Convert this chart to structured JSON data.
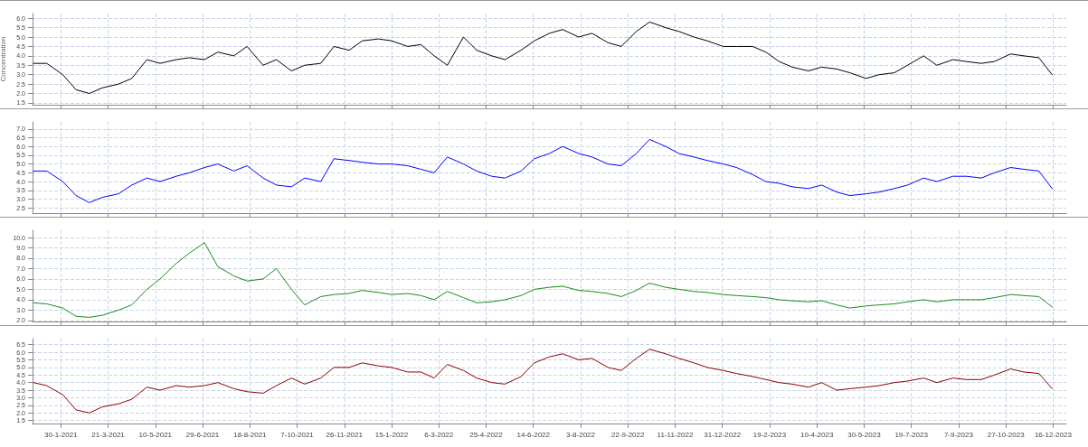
{
  "chart_data": [
    {
      "type": "line",
      "ylabel": "Concentration",
      "x": [
        "2021-01-01",
        "2021-01-15",
        "2021-02-01",
        "2021-02-15",
        "2021-03-01",
        "2021-03-15",
        "2021-04-01",
        "2021-04-15",
        "2021-05-01",
        "2021-05-15",
        "2021-06-01",
        "2021-06-15",
        "2021-07-01",
        "2021-07-15",
        "2021-08-01",
        "2021-08-15",
        "2021-09-01",
        "2021-09-15",
        "2021-10-01",
        "2021-10-15",
        "2021-11-01",
        "2021-11-15",
        "2021-12-01",
        "2021-12-15",
        "2022-01-01",
        "2022-01-15",
        "2022-02-01",
        "2022-02-15",
        "2022-03-01",
        "2022-03-15",
        "2022-04-01",
        "2022-04-15",
        "2022-05-01",
        "2022-05-15",
        "2022-06-01",
        "2022-06-15",
        "2022-07-01",
        "2022-07-15",
        "2022-08-01",
        "2022-08-15",
        "2022-09-01",
        "2022-09-15",
        "2022-10-01",
        "2022-10-15",
        "2022-11-01",
        "2022-11-15",
        "2022-12-01",
        "2022-12-15",
        "2023-01-01",
        "2023-01-15",
        "2023-02-01",
        "2023-02-15",
        "2023-03-01",
        "2023-03-15",
        "2023-04-01",
        "2023-04-15",
        "2023-05-01",
        "2023-05-15",
        "2023-06-01",
        "2023-06-15",
        "2023-07-01",
        "2023-07-15",
        "2023-08-01",
        "2023-08-15",
        "2023-09-01",
        "2023-09-15",
        "2023-10-01",
        "2023-10-15",
        "2023-11-01",
        "2023-11-15",
        "2023-12-01",
        "2023-12-15"
      ],
      "series": [
        {
          "color": "#000000",
          "values": [
            3.6,
            3.6,
            3.0,
            2.2,
            2.0,
            2.3,
            2.5,
            2.8,
            3.8,
            3.6,
            3.8,
            3.9,
            3.8,
            4.2,
            4.0,
            4.5,
            3.5,
            3.8,
            3.2,
            3.5,
            3.6,
            4.5,
            4.3,
            4.8,
            4.9,
            4.8,
            4.5,
            4.6,
            4.0,
            3.5,
            5.0,
            4.3,
            4.0,
            3.8,
            4.3,
            4.8,
            5.2,
            5.4,
            5.0,
            5.2,
            4.7,
            4.5,
            5.3,
            5.8,
            5.5,
            5.3,
            5.0,
            4.8,
            4.5,
            4.5,
            4.5,
            4.2,
            3.7,
            3.4,
            3.2,
            3.4,
            3.3,
            3.1,
            2.8,
            3.0,
            3.1,
            3.5,
            4.0,
            3.5,
            3.8,
            3.7,
            3.6,
            3.7,
            4.1,
            4.0,
            3.9,
            3.0
          ]
        }
      ],
      "xlim": [
        "2020-12-31",
        "2023-12-30"
      ],
      "xticks": [
        {
          "value": "2021-01-30",
          "label": null
        },
        {
          "value": "2021-03-21",
          "label": null
        },
        {
          "value": "2021-05-10",
          "label": null
        },
        {
          "value": "2021-06-29",
          "label": null
        },
        {
          "value": "2021-08-18",
          "label": null
        },
        {
          "value": "2021-10-07",
          "label": null
        },
        {
          "value": "2021-11-26",
          "label": null
        },
        {
          "value": "2022-01-15",
          "label": null
        },
        {
          "value": "2022-03-06",
          "label": null
        },
        {
          "value": "2022-04-25",
          "label": null
        },
        {
          "value": "2022-06-14",
          "label": null
        },
        {
          "value": "2022-08-03",
          "label": null
        },
        {
          "value": "2022-09-22",
          "label": null
        },
        {
          "value": "2022-11-11",
          "label": null
        },
        {
          "value": "2022-12-31",
          "label": null
        },
        {
          "value": "2023-02-19",
          "label": null
        },
        {
          "value": "2023-04-10",
          "label": null
        },
        {
          "value": "2023-05-30",
          "label": null
        },
        {
          "value": "2023-07-19",
          "label": null
        },
        {
          "value": "2023-09-07",
          "label": null
        },
        {
          "value": "2023-10-27",
          "label": null
        },
        {
          "value": "2023-12-16",
          "label": null
        }
      ],
      "ylim": [
        1.4,
        6.25
      ],
      "yticks": [
        {
          "value": 1.5,
          "label": "1.5"
        },
        {
          "value": 2,
          "label": "2.0"
        },
        {
          "value": 2.5,
          "label": "2.5"
        },
        {
          "value": 3,
          "label": "3.0"
        },
        {
          "value": 3.5,
          "label": "3.5"
        },
        {
          "value": 4,
          "label": "4.0"
        },
        {
          "value": 4.5,
          "label": "4.5"
        },
        {
          "value": 5,
          "label": "5.0"
        },
        {
          "value": 5.5,
          "label": "5.5"
        },
        {
          "value": 6,
          "label": "6.0"
        }
      ],
      "grid": true,
      "marker": "none",
      "line_style": "solid",
      "tick_labels": "y"
    },
    {
      "type": "line",
      "x": [
        "2021-01-01",
        "2021-01-15",
        "2021-02-01",
        "2021-02-15",
        "2021-03-01",
        "2021-03-15",
        "2021-04-01",
        "2021-04-15",
        "2021-05-01",
        "2021-05-15",
        "2021-06-01",
        "2021-06-15",
        "2021-07-01",
        "2021-07-15",
        "2021-08-01",
        "2021-08-15",
        "2021-09-01",
        "2021-09-15",
        "2021-10-01",
        "2021-10-15",
        "2021-11-01",
        "2021-11-15",
        "2021-12-01",
        "2021-12-15",
        "2022-01-01",
        "2022-01-15",
        "2022-02-01",
        "2022-02-15",
        "2022-03-01",
        "2022-03-15",
        "2022-04-01",
        "2022-04-15",
        "2022-05-01",
        "2022-05-15",
        "2022-06-01",
        "2022-06-15",
        "2022-07-01",
        "2022-07-15",
        "2022-08-01",
        "2022-08-15",
        "2022-09-01",
        "2022-09-15",
        "2022-10-01",
        "2022-10-15",
        "2022-11-01",
        "2022-11-15",
        "2022-12-01",
        "2022-12-15",
        "2023-01-01",
        "2023-01-15",
        "2023-02-01",
        "2023-02-15",
        "2023-03-01",
        "2023-03-15",
        "2023-04-01",
        "2023-04-15",
        "2023-05-01",
        "2023-05-15",
        "2023-06-01",
        "2023-06-15",
        "2023-07-01",
        "2023-07-15",
        "2023-08-01",
        "2023-08-15",
        "2023-09-01",
        "2023-09-15",
        "2023-10-01",
        "2023-10-15",
        "2023-11-01",
        "2023-11-15",
        "2023-12-01",
        "2023-12-15"
      ],
      "series": [
        {
          "color": "#0000ff",
          "values": [
            4.6,
            4.6,
            4.0,
            3.2,
            2.8,
            3.1,
            3.3,
            3.8,
            4.2,
            4.0,
            4.3,
            4.5,
            4.8,
            5.0,
            4.6,
            4.9,
            4.2,
            3.8,
            3.7,
            4.2,
            4.0,
            5.3,
            5.2,
            5.1,
            5.0,
            5.0,
            4.9,
            4.7,
            4.5,
            5.4,
            5.0,
            4.6,
            4.3,
            4.2,
            4.6,
            5.3,
            5.6,
            6.0,
            5.6,
            5.4,
            5.0,
            4.9,
            5.6,
            6.4,
            6.0,
            5.6,
            5.4,
            5.2,
            5.0,
            4.8,
            4.4,
            4.0,
            3.9,
            3.7,
            3.6,
            3.8,
            3.4,
            3.2,
            3.3,
            3.4,
            3.6,
            3.8,
            4.2,
            4.0,
            4.3,
            4.3,
            4.2,
            4.5,
            4.8,
            4.7,
            4.6,
            3.6
          ]
        }
      ],
      "xlim": [
        "2020-12-31",
        "2023-12-30"
      ],
      "xticks": [
        {
          "value": "2021-01-30",
          "label": null
        },
        {
          "value": "2021-03-21",
          "label": null
        },
        {
          "value": "2021-05-10",
          "label": null
        },
        {
          "value": "2021-06-29",
          "label": null
        },
        {
          "value": "2021-08-18",
          "label": null
        },
        {
          "value": "2021-10-07",
          "label": null
        },
        {
          "value": "2021-11-26",
          "label": null
        },
        {
          "value": "2022-01-15",
          "label": null
        },
        {
          "value": "2022-03-06",
          "label": null
        },
        {
          "value": "2022-04-25",
          "label": null
        },
        {
          "value": "2022-06-14",
          "label": null
        },
        {
          "value": "2022-08-03",
          "label": null
        },
        {
          "value": "2022-09-22",
          "label": null
        },
        {
          "value": "2022-11-11",
          "label": null
        },
        {
          "value": "2022-12-31",
          "label": null
        },
        {
          "value": "2023-02-19",
          "label": null
        },
        {
          "value": "2023-04-10",
          "label": null
        },
        {
          "value": "2023-05-30",
          "label": null
        },
        {
          "value": "2023-07-19",
          "label": null
        },
        {
          "value": "2023-09-07",
          "label": null
        },
        {
          "value": "2023-10-27",
          "label": null
        },
        {
          "value": "2023-12-16",
          "label": null
        }
      ],
      "ylim": [
        2.2,
        7.4
      ],
      "yticks": [
        {
          "value": 2.5,
          "label": "2.5"
        },
        {
          "value": 3,
          "label": "3.0"
        },
        {
          "value": 3.5,
          "label": "3.5"
        },
        {
          "value": 4,
          "label": "4.0"
        },
        {
          "value": 4.5,
          "label": "4.5"
        },
        {
          "value": 5,
          "label": "5.0"
        },
        {
          "value": 5.5,
          "label": "5.5"
        },
        {
          "value": 6,
          "label": "6.0"
        },
        {
          "value": 6.5,
          "label": "6.5"
        },
        {
          "value": 7,
          "label": "7.0"
        }
      ],
      "grid": true,
      "marker": "none",
      "line_style": "solid",
      "tick_labels": "y"
    },
    {
      "type": "line",
      "x": [
        "2021-01-01",
        "2021-01-15",
        "2021-02-01",
        "2021-02-15",
        "2021-03-01",
        "2021-03-15",
        "2021-04-01",
        "2021-04-15",
        "2021-05-01",
        "2021-05-15",
        "2021-06-01",
        "2021-06-15",
        "2021-07-01",
        "2021-07-15",
        "2021-08-01",
        "2021-08-15",
        "2021-09-01",
        "2021-09-15",
        "2021-10-01",
        "2021-10-15",
        "2021-11-01",
        "2021-11-15",
        "2021-12-01",
        "2021-12-15",
        "2022-01-01",
        "2022-01-15",
        "2022-02-01",
        "2022-02-15",
        "2022-03-01",
        "2022-03-15",
        "2022-04-01",
        "2022-04-15",
        "2022-05-01",
        "2022-05-15",
        "2022-06-01",
        "2022-06-15",
        "2022-07-01",
        "2022-07-15",
        "2022-08-01",
        "2022-08-15",
        "2022-09-01",
        "2022-09-15",
        "2022-10-01",
        "2022-10-15",
        "2022-11-01",
        "2022-11-15",
        "2022-12-01",
        "2022-12-15",
        "2023-01-01",
        "2023-01-15",
        "2023-02-01",
        "2023-02-15",
        "2023-03-01",
        "2023-03-15",
        "2023-04-01",
        "2023-04-15",
        "2023-05-01",
        "2023-05-15",
        "2023-06-01",
        "2023-06-15",
        "2023-07-01",
        "2023-07-15",
        "2023-08-01",
        "2023-08-15",
        "2023-09-01",
        "2023-09-15",
        "2023-10-01",
        "2023-10-15",
        "2023-11-01",
        "2023-11-15",
        "2023-12-01",
        "2023-12-15"
      ],
      "series": [
        {
          "color": "#1a8a1a",
          "values": [
            3.7,
            3.6,
            3.2,
            2.4,
            2.3,
            2.5,
            3.0,
            3.5,
            5.0,
            6.0,
            7.5,
            8.5,
            9.5,
            7.2,
            6.3,
            5.8,
            6.0,
            7.0,
            5.0,
            3.5,
            4.3,
            4.5,
            4.6,
            4.9,
            4.7,
            4.5,
            4.6,
            4.4,
            4.0,
            4.8,
            4.2,
            3.7,
            3.8,
            4.0,
            4.4,
            5.0,
            5.2,
            5.3,
            4.9,
            4.8,
            4.6,
            4.3,
            4.9,
            5.6,
            5.2,
            5.0,
            4.8,
            4.7,
            4.5,
            4.4,
            4.3,
            4.2,
            4.0,
            3.9,
            3.8,
            3.9,
            3.5,
            3.2,
            3.4,
            3.5,
            3.6,
            3.8,
            4.0,
            3.8,
            4.0,
            4.0,
            4.0,
            4.2,
            4.5,
            4.4,
            4.3,
            3.3
          ]
        }
      ],
      "xlim": [
        "2020-12-31",
        "2023-12-30"
      ],
      "xticks": [
        {
          "value": "2021-01-30",
          "label": null
        },
        {
          "value": "2021-03-21",
          "label": null
        },
        {
          "value": "2021-05-10",
          "label": null
        },
        {
          "value": "2021-06-29",
          "label": null
        },
        {
          "value": "2021-08-18",
          "label": null
        },
        {
          "value": "2021-10-07",
          "label": null
        },
        {
          "value": "2021-11-26",
          "label": null
        },
        {
          "value": "2022-01-15",
          "label": null
        },
        {
          "value": "2022-03-06",
          "label": null
        },
        {
          "value": "2022-04-25",
          "label": null
        },
        {
          "value": "2022-06-14",
          "label": null
        },
        {
          "value": "2022-08-03",
          "label": null
        },
        {
          "value": "2022-09-22",
          "label": null
        },
        {
          "value": "2022-11-11",
          "label": null
        },
        {
          "value": "2022-12-31",
          "label": null
        },
        {
          "value": "2023-02-19",
          "label": null
        },
        {
          "value": "2023-04-10",
          "label": null
        },
        {
          "value": "2023-05-30",
          "label": null
        },
        {
          "value": "2023-07-19",
          "label": null
        },
        {
          "value": "2023-09-07",
          "label": null
        },
        {
          "value": "2023-10-27",
          "label": null
        },
        {
          "value": "2023-12-16",
          "label": null
        }
      ],
      "ylim": [
        1.9,
        10.7
      ],
      "yticks": [
        {
          "value": 2,
          "label": "2.0"
        },
        {
          "value": 3,
          "label": "3.0"
        },
        {
          "value": 4,
          "label": "4.0"
        },
        {
          "value": 5,
          "label": "5.0"
        },
        {
          "value": 6,
          "label": "6.0"
        },
        {
          "value": 7,
          "label": "7.0"
        },
        {
          "value": 8,
          "label": "8.0"
        },
        {
          "value": 9,
          "label": "9.0"
        },
        {
          "value": 10,
          "label": "10.0"
        }
      ],
      "grid": true,
      "marker": "none",
      "line_style": "solid",
      "tick_labels": "y"
    },
    {
      "type": "line",
      "x": [
        "2021-01-01",
        "2021-01-15",
        "2021-02-01",
        "2021-02-15",
        "2021-03-01",
        "2021-03-15",
        "2021-04-01",
        "2021-04-15",
        "2021-05-01",
        "2021-05-15",
        "2021-06-01",
        "2021-06-15",
        "2021-07-01",
        "2021-07-15",
        "2021-08-01",
        "2021-08-15",
        "2021-09-01",
        "2021-09-15",
        "2021-10-01",
        "2021-10-15",
        "2021-11-01",
        "2021-11-15",
        "2021-12-01",
        "2021-12-15",
        "2022-01-01",
        "2022-01-15",
        "2022-02-01",
        "2022-02-15",
        "2022-03-01",
        "2022-03-15",
        "2022-04-01",
        "2022-04-15",
        "2022-05-01",
        "2022-05-15",
        "2022-06-01",
        "2022-06-15",
        "2022-07-01",
        "2022-07-15",
        "2022-08-01",
        "2022-08-15",
        "2022-09-01",
        "2022-09-15",
        "2022-10-01",
        "2022-10-15",
        "2022-11-01",
        "2022-11-15",
        "2022-12-01",
        "2022-12-15",
        "2023-01-01",
        "2023-01-15",
        "2023-02-01",
        "2023-02-15",
        "2023-03-01",
        "2023-03-15",
        "2023-04-01",
        "2023-04-15",
        "2023-05-01",
        "2023-05-15",
        "2023-06-01",
        "2023-06-15",
        "2023-07-01",
        "2023-07-15",
        "2023-08-01",
        "2023-08-15",
        "2023-09-01",
        "2023-09-15",
        "2023-10-01",
        "2023-10-15",
        "2023-11-01",
        "2023-11-15",
        "2023-12-01",
        "2023-12-15"
      ],
      "series": [
        {
          "color": "#8b0000",
          "values": [
            4.0,
            3.8,
            3.2,
            2.2,
            2.0,
            2.4,
            2.6,
            2.9,
            3.7,
            3.5,
            3.8,
            3.7,
            3.8,
            4.0,
            3.6,
            3.4,
            3.3,
            3.8,
            4.3,
            3.9,
            4.3,
            5.0,
            5.0,
            5.3,
            5.1,
            5.0,
            4.7,
            4.7,
            4.3,
            5.2,
            4.8,
            4.3,
            4.0,
            3.9,
            4.4,
            5.3,
            5.7,
            5.9,
            5.5,
            5.6,
            5.0,
            4.8,
            5.6,
            6.2,
            5.9,
            5.6,
            5.3,
            5.0,
            4.8,
            4.6,
            4.4,
            4.2,
            4.0,
            3.9,
            3.7,
            4.0,
            3.5,
            3.6,
            3.7,
            3.8,
            4.0,
            4.1,
            4.3,
            4.0,
            4.3,
            4.2,
            4.2,
            4.5,
            4.9,
            4.7,
            4.6,
            3.6
          ]
        }
      ],
      "xlim": [
        "2020-12-31",
        "2023-12-30"
      ],
      "xticks": [
        {
          "value": "2021-01-30",
          "label": "30-1-2021"
        },
        {
          "value": "2021-03-21",
          "label": "21-3-2021"
        },
        {
          "value": "2021-05-10",
          "label": "10-5-2021"
        },
        {
          "value": "2021-06-29",
          "label": "29-6-2021"
        },
        {
          "value": "2021-08-18",
          "label": "18-8-2021"
        },
        {
          "value": "2021-10-07",
          "label": "7-10-2021"
        },
        {
          "value": "2021-11-26",
          "label": "26-11-2021"
        },
        {
          "value": "2022-01-15",
          "label": "15-1-2022"
        },
        {
          "value": "2022-03-06",
          "label": "6-3-2022"
        },
        {
          "value": "2022-04-25",
          "label": "25-4-2022"
        },
        {
          "value": "2022-06-14",
          "label": "14-6-2022"
        },
        {
          "value": "2022-08-03",
          "label": "3-8-2022"
        },
        {
          "value": "2022-09-22",
          "label": "22-9-2022"
        },
        {
          "value": "2022-11-11",
          "label": "11-11-2022"
        },
        {
          "value": "2022-12-31",
          "label": "31-12-2022"
        },
        {
          "value": "2023-02-19",
          "label": "19-2-2023"
        },
        {
          "value": "2023-04-10",
          "label": "10-4-2023"
        },
        {
          "value": "2023-05-30",
          "label": "30-5-2023"
        },
        {
          "value": "2023-07-19",
          "label": "19-7-2023"
        },
        {
          "value": "2023-09-07",
          "label": "7-9-2023"
        },
        {
          "value": "2023-10-27",
          "label": "27-10-2023"
        },
        {
          "value": "2023-12-16",
          "label": "16-12-2023"
        }
      ],
      "ylim": [
        1.3,
        6.9
      ],
      "yticks": [
        {
          "value": 1.5,
          "label": "1.5"
        },
        {
          "value": 2,
          "label": "2.0"
        },
        {
          "value": 2.5,
          "label": "2.5"
        },
        {
          "value": 3,
          "label": "3.0"
        },
        {
          "value": 3.5,
          "label": "3.5"
        },
        {
          "value": 4,
          "label": "4.0"
        },
        {
          "value": 4.5,
          "label": "4.5"
        },
        {
          "value": 5,
          "label": "5.0"
        },
        {
          "value": 5.5,
          "label": "5.5"
        },
        {
          "value": 6,
          "label": "6.0"
        },
        {
          "value": 6.5,
          "label": "6.5"
        }
      ],
      "grid": true,
      "marker": "none",
      "line_style": "solid"
    }
  ]
}
